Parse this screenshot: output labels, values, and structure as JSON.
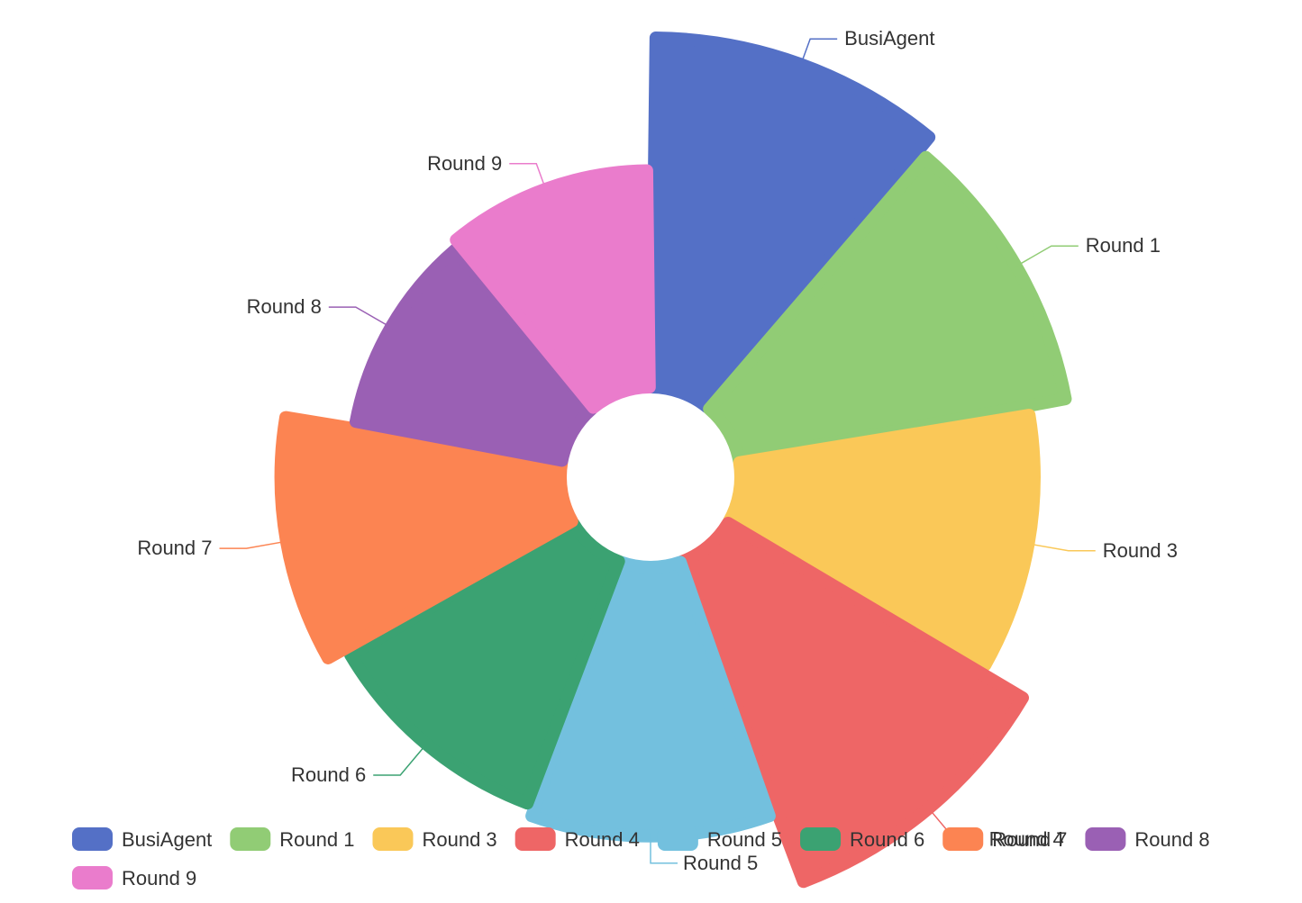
{
  "chart_data": {
    "type": "pie",
    "variant": "rose",
    "title": "",
    "categories": [
      "BusiAgent",
      "Round 1",
      "Round 3",
      "Round 4",
      "Round 5",
      "Round 6",
      "Round 7",
      "Round 8",
      "Round 9"
    ],
    "values": [
      100,
      95,
      84,
      98,
      77,
      74,
      80,
      60,
      62
    ],
    "colors": [
      "#5470c6",
      "#91cc75",
      "#fac858",
      "#ee6666",
      "#73c0de",
      "#3ba272",
      "#fc8452",
      "#9a60b4",
      "#ea7ccc"
    ],
    "legend": {
      "placement": "bottom-left",
      "items": [
        "BusiAgent",
        "Round 1",
        "Round 3",
        "Round 4",
        "Round 5",
        "Round 6",
        "Round 7",
        "Round 8",
        "Round 9"
      ]
    }
  }
}
